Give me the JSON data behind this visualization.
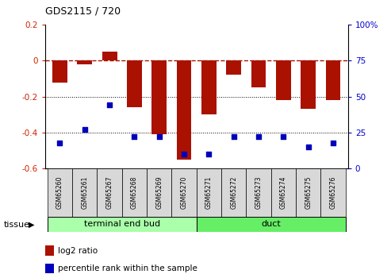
{
  "title": "GDS2115 / 720",
  "samples": [
    "GSM65260",
    "GSM65261",
    "GSM65267",
    "GSM65268",
    "GSM65269",
    "GSM65270",
    "GSM65271",
    "GSM65272",
    "GSM65273",
    "GSM65274",
    "GSM65275",
    "GSM65276"
  ],
  "log2_ratio": [
    -0.12,
    -0.02,
    0.05,
    -0.26,
    -0.41,
    -0.55,
    -0.3,
    -0.08,
    -0.15,
    -0.22,
    -0.27,
    -0.22
  ],
  "percentile_rank": [
    18,
    27,
    44,
    22,
    22,
    10,
    10,
    22,
    22,
    22,
    15,
    18
  ],
  "bar_color": "#aa1100",
  "dot_color": "#0000bb",
  "ylim_left": [
    -0.6,
    0.2
  ],
  "ylim_right": [
    0,
    100
  ],
  "right_ticks": [
    0,
    25,
    50,
    75,
    100
  ],
  "right_tick_labels": [
    "0",
    "25",
    "50",
    "75",
    "100%"
  ],
  "left_ticks": [
    -0.6,
    -0.4,
    -0.2,
    0.0,
    0.2
  ],
  "left_tick_labels": [
    "-0.6",
    "-0.4",
    "-0.2",
    "0",
    "0.2"
  ],
  "hline_y": 0,
  "dotted_lines": [
    -0.2,
    -0.4
  ],
  "tissue_groups": [
    {
      "label": "terminal end bud",
      "start": 0,
      "end": 6,
      "color": "#aaffaa"
    },
    {
      "label": "duct",
      "start": 6,
      "end": 12,
      "color": "#55ee55"
    }
  ],
  "legend_items": [
    {
      "label": "log2 ratio",
      "color": "#aa1100"
    },
    {
      "label": "percentile rank within the sample",
      "color": "#0000bb"
    }
  ],
  "tissue_label": "tissue",
  "background_color": "#ffffff"
}
